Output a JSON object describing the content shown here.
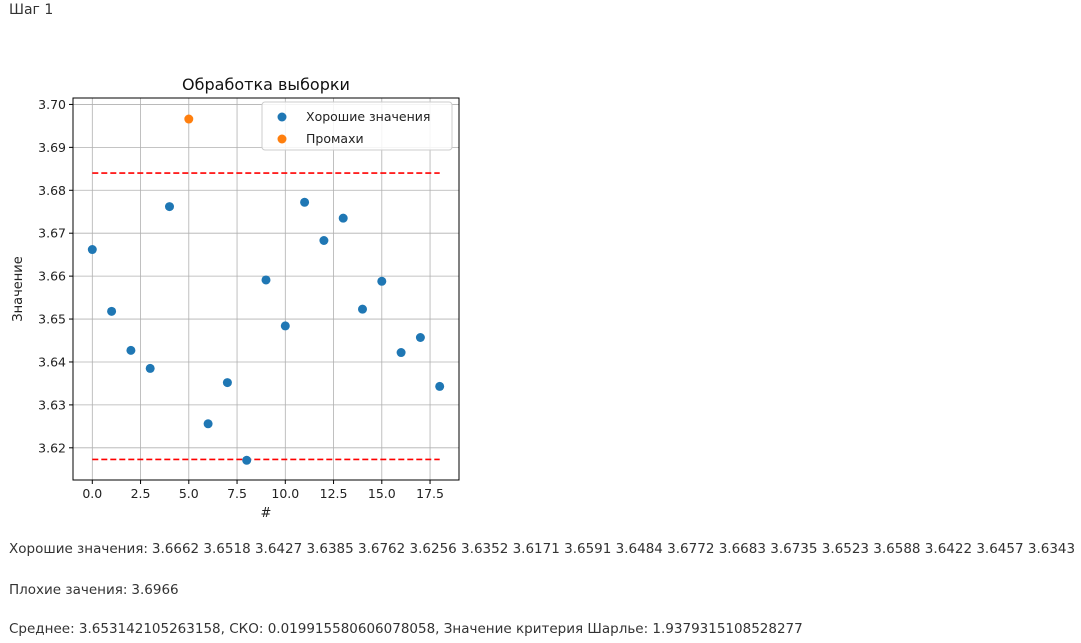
{
  "step_label": "Шаг 1",
  "chart_data": {
    "type": "scatter",
    "title": "Обработка выборки",
    "xlabel": "#",
    "ylabel": "Значение",
    "xlim": [
      -1,
      19
    ],
    "ylim": [
      3.6125,
      3.7015
    ],
    "xticks": [
      0,
      2.5,
      5,
      7.5,
      10,
      12.5,
      15,
      17.5
    ],
    "xtick_labels": [
      "0.0",
      "2.5",
      "5.0",
      "7.5",
      "10.0",
      "12.5",
      "15.0",
      "17.5"
    ],
    "yticks": [
      3.62,
      3.63,
      3.64,
      3.65,
      3.66,
      3.67,
      3.68,
      3.69,
      3.7
    ],
    "ytick_labels": [
      "3.62",
      "3.63",
      "3.64",
      "3.65",
      "3.66",
      "3.67",
      "3.68",
      "3.69",
      "3.70"
    ],
    "grid": true,
    "legend_position": "top-right",
    "series": [
      {
        "name": "Хорошие значения",
        "color": "#1f77b4",
        "x": [
          0,
          1,
          2,
          3,
          4,
          6,
          7,
          8,
          9,
          10,
          11,
          12,
          13,
          14,
          15,
          16,
          17,
          18
        ],
        "y": [
          3.6662,
          3.6518,
          3.6427,
          3.6385,
          3.6762,
          3.6256,
          3.6352,
          3.6171,
          3.6591,
          3.6484,
          3.6772,
          3.6683,
          3.6735,
          3.6523,
          3.6588,
          3.6422,
          3.6457,
          3.6343
        ]
      },
      {
        "name": "Промахи",
        "color": "#ff7f0e",
        "x": [
          5
        ],
        "y": [
          3.6966
        ]
      }
    ],
    "hlines": [
      {
        "y": 3.684,
        "x_from": 0,
        "x_to": 18,
        "color": "#ff0000",
        "style": "dashed"
      },
      {
        "y": 3.6173,
        "x_from": 0,
        "x_to": 18,
        "color": "#ff0000",
        "style": "dashed"
      }
    ]
  },
  "good_values": {
    "label": "Хорошие значения:",
    "text": "3.6662 3.6518 3.6427 3.6385 3.6762 3.6256 3.6352 3.6171 3.6591 3.6484 3.6772 3.6683 3.6735 3.6523 3.6588 3.6422 3.6457 3.6343"
  },
  "bad_values": {
    "label": "Плохие зачения:",
    "text": "3.6966"
  },
  "stats": {
    "text": "Среднее: 3.653142105263158, СКО: 0.019915580606078058, Значение критерия Шарлье: 1.9379315108528277"
  }
}
